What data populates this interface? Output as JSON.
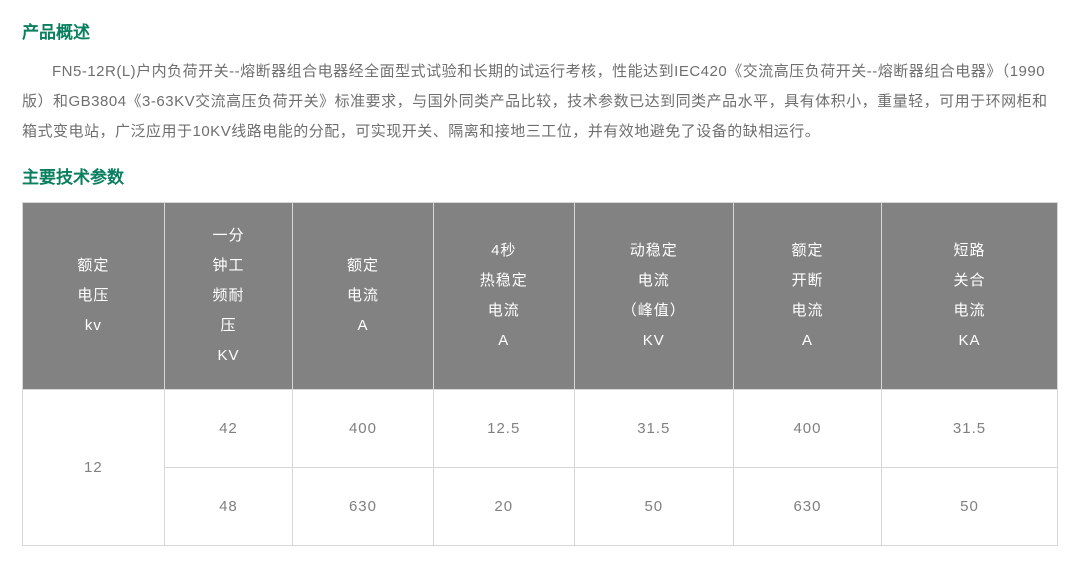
{
  "headings": {
    "overview": "产品概述",
    "params": "主要技术参数"
  },
  "overview_text": "FN5-12R(L)户内负荷开关--熔断器组合电器经全面型式试验和长期的试运行考核，性能达到IEC420《交流高压负荷开关--熔断器组合电器》（1990版）和GB3804《3-63KV交流高压负荷开关》标准要求，与国外同类产品比较，技术参数已达到同类产品水平，具有体积小，重量轻，可用于环网柜和箱式变电站，广泛应用于10KV线路电能的分配，可实现开关、隔离和接地三工位，并有效地避免了设备的缺相运行。",
  "table": {
    "type": "table",
    "header_bg": "#828282",
    "header_color": "#ffffff",
    "cell_color": "#808080",
    "border_color": "#d7d7d7",
    "columns": [
      {
        "lines": [
          "额定",
          "电压",
          "kv"
        ]
      },
      {
        "lines": [
          "一分",
          "钟工",
          "频耐",
          "压",
          "KV"
        ]
      },
      {
        "lines": [
          "额定",
          "电流",
          "A"
        ]
      },
      {
        "lines": [
          "4秒",
          "热稳定",
          "电流",
          "A"
        ]
      },
      {
        "lines": [
          "动稳定",
          "电流",
          "（峰值）",
          "KV"
        ]
      },
      {
        "lines": [
          "额定",
          "开断",
          "电流",
          "A"
        ]
      },
      {
        "lines": [
          "短路",
          "关合",
          "电流",
          "KA"
        ]
      }
    ],
    "merged_col0": "12",
    "rows": [
      [
        "42",
        "400",
        "12.5",
        "31.5",
        "400",
        "31.5"
      ],
      [
        "48",
        "630",
        "20",
        "50",
        "630",
        "50"
      ]
    ]
  }
}
